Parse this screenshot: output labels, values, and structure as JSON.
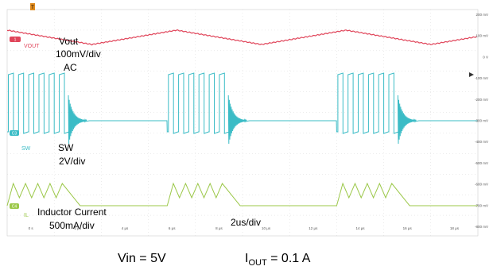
{
  "chart_data": {
    "type": "line",
    "title": "",
    "grid": true,
    "x_ticks": [
      "0 s",
      "2 μs",
      "4 μs",
      "6 μs",
      "8 μs",
      "10 μs",
      "12 μs",
      "14 μs",
      "16 μs",
      "18 μs"
    ],
    "x_range_us": [
      -1,
      19
    ],
    "y_ticks_right": [
      "200 mV",
      "100 mV",
      "0 V",
      "-100 mV",
      "-200 mV",
      "-300 mV",
      "-400 mV",
      "-500 mV",
      "-600 mV",
      "-700 mV",
      "-800 mV"
    ],
    "timebase_label": "2us/div",
    "burst_starts_us": [
      -1,
      5.8,
      13.0
    ],
    "burst_end_offset_us": 2.6,
    "period_us": 7.2,
    "series": [
      {
        "name": "Vout",
        "badge": "VOUT",
        "lines": [
          "Vout",
          "100mV/div",
          "AC"
        ],
        "color": "#e0455a",
        "shape": "triangle ripple",
        "peaks_us": [
          -1,
          8.4,
          15.6
        ],
        "peak_to_peak_mV": 20
      },
      {
        "name": "SW",
        "badge": "SW",
        "lines": [
          "SW",
          "2V/div"
        ],
        "color": "#3bbcc6",
        "shape": "switching bursts with ringing",
        "pulses_per_burst": 6,
        "high_V": 5,
        "idle_V": 0
      },
      {
        "name": "IL",
        "badge": "IL",
        "lines": [
          "Inductor Current",
          "500mA/div"
        ],
        "color": "#9cc84a",
        "shape": "triangular current pulses",
        "pulses_per_burst": 5,
        "peak_mA": 650
      }
    ],
    "channel_markers": {
      "ch1": "1",
      "ch3": "C3",
      "ch4": "C4"
    }
  },
  "caption": {
    "vin": "Vin = 5V",
    "iout_prefix": "I",
    "iout_sub": "OUT",
    "iout_value": " = 0.1 A"
  }
}
